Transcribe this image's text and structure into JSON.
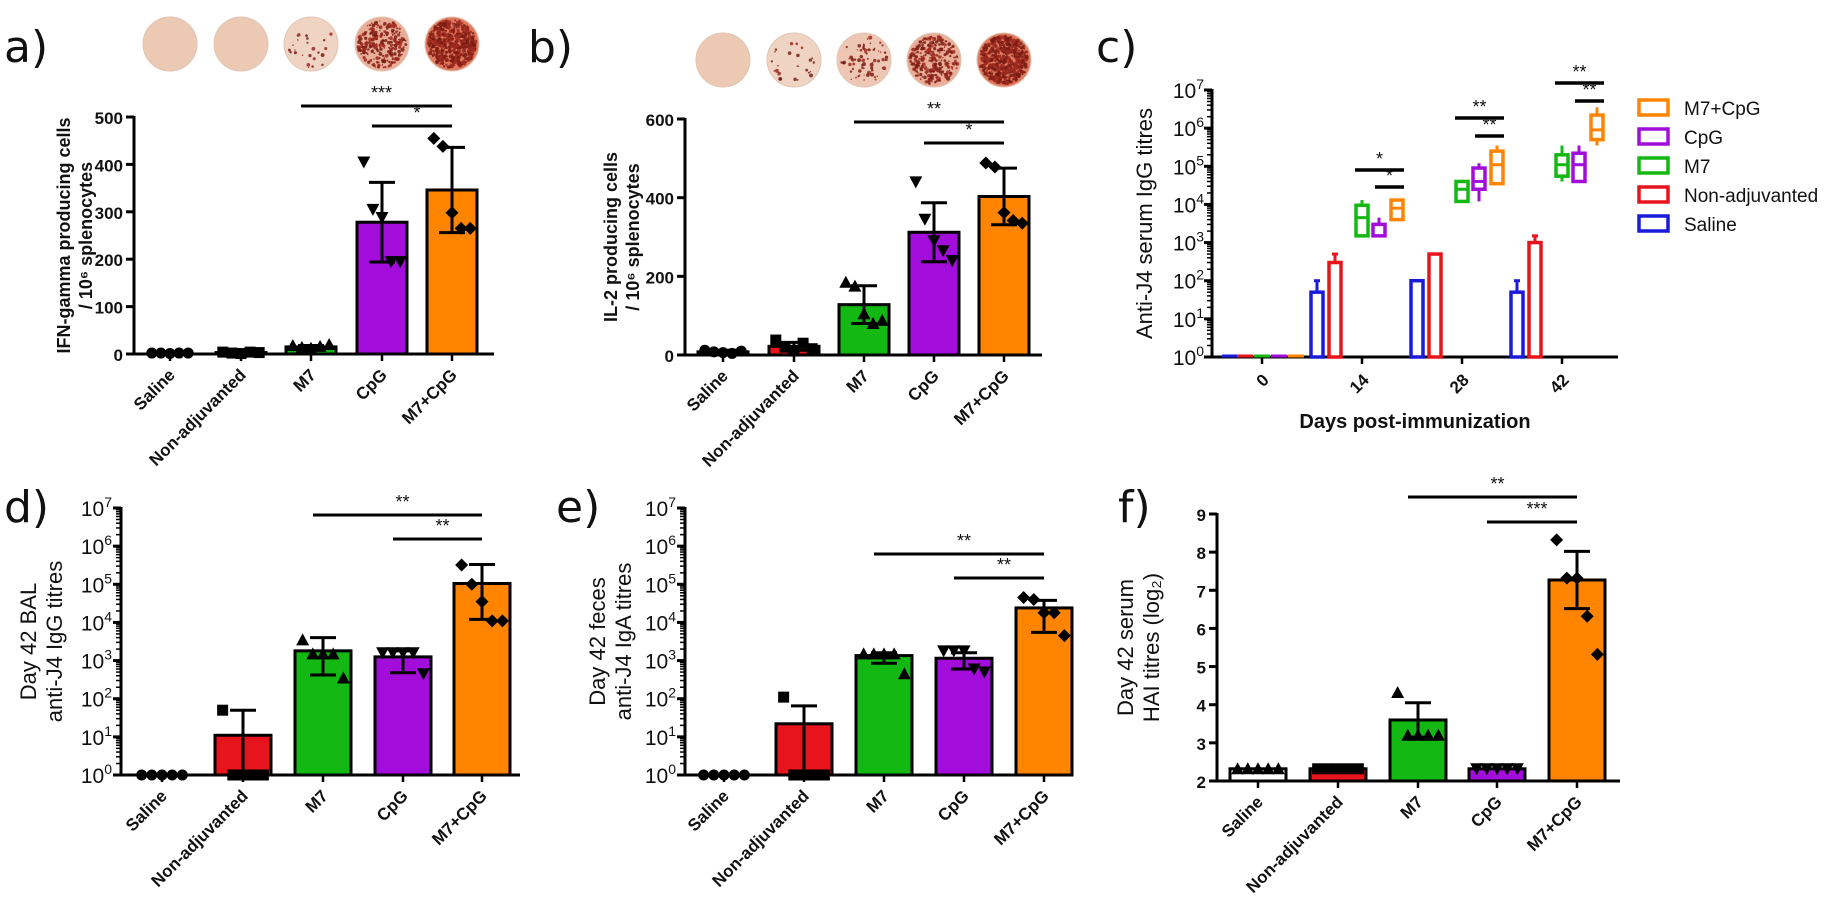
{
  "groups": [
    "Saline",
    "Non-adjuvanted",
    "M7",
    "CpG",
    "M7+CpG"
  ],
  "colors": {
    "Saline": "#1a1adb",
    "Non-adjuvanted": "#e8141b",
    "M7": "#13b813",
    "CpG": "#a20ddb",
    "M7+CpG": "#ff8400"
  },
  "chart_data": [
    {
      "id": "a",
      "panel_label": "a)",
      "type": "bar",
      "ylabel_line1": "IFN-gamma producing cells",
      "ylabel_line2": "/ 10⁶ splenocytes",
      "ylim": [
        0,
        500
      ],
      "yticks": [
        0,
        100,
        200,
        300,
        400,
        500
      ],
      "scale": "linear",
      "categories": [
        "Saline",
        "Non-adjuvanted",
        "M7",
        "CpG",
        "M7+CpG"
      ],
      "values": [
        2,
        3,
        15,
        278,
        346
      ],
      "errors": [
        1,
        2,
        3,
        84,
        90
      ],
      "points": [
        [
          2,
          2,
          1,
          2,
          2
        ],
        [
          4,
          2,
          1,
          4,
          3
        ],
        [
          18,
          14,
          12,
          16,
          20
        ],
        [
          405,
          305,
          288,
          195,
          195
        ],
        [
          455,
          438,
          298,
          265,
          265
        ]
      ],
      "markers": [
        "circle",
        "square",
        "triangle",
        "triangle-down",
        "diamond"
      ],
      "sig": [
        {
          "from": 2,
          "to": 4,
          "label": "***"
        },
        {
          "from": 3,
          "to": 4,
          "label": "*"
        }
      ],
      "elispot_wells": [
        "none",
        "none",
        "sparse",
        "dense",
        "very-dense"
      ]
    },
    {
      "id": "b",
      "panel_label": "b)",
      "type": "bar",
      "ylabel_line1": "IL-2 producing cells",
      "ylabel_line2": "/ 10⁶ splenocytes",
      "ylim": [
        0,
        600
      ],
      "yticks": [
        0,
        200,
        400,
        600
      ],
      "scale": "linear",
      "categories": [
        "Saline",
        "Non-adjuvanted",
        "M7",
        "CpG",
        "M7+CpG"
      ],
      "values": [
        8,
        22,
        128,
        312,
        403
      ],
      "errors": [
        4,
        10,
        48,
        75,
        72
      ],
      "points": [
        [
          12,
          8,
          6,
          4,
          10
        ],
        [
          38,
          20,
          10,
          30,
          16
        ],
        [
          185,
          175,
          105,
          80,
          88
        ],
        [
          440,
          345,
          290,
          265,
          240
        ],
        [
          488,
          478,
          362,
          342,
          335
        ]
      ],
      "markers": [
        "circle",
        "square",
        "triangle",
        "triangle-down",
        "diamond"
      ],
      "sig": [
        {
          "from": 2,
          "to": 4,
          "label": "**"
        },
        {
          "from": 3,
          "to": 4,
          "label": "*"
        }
      ],
      "elispot_wells": [
        "none",
        "sparse",
        "moderate",
        "dense",
        "very-dense"
      ]
    },
    {
      "id": "c",
      "panel_label": "c)",
      "type": "box",
      "ylabel": "Anti-J4 serum IgG titres",
      "xlabel": "Days post-immunization",
      "scale": "log10",
      "ylim_exp": [
        0,
        7
      ],
      "yticks_exp": [
        0,
        1,
        2,
        3,
        4,
        5,
        6,
        7
      ],
      "x": [
        0,
        14,
        28,
        42
      ],
      "legend": [
        "M7+CpG",
        "CpG",
        "M7",
        "Non-adjuvanted",
        "Saline"
      ],
      "legend_position": "right",
      "series": [
        {
          "name": "Saline",
          "style": "bar",
          "values": [
            1,
            50,
            100,
            50
          ],
          "upper": [
            1,
            100,
            100,
            100
          ]
        },
        {
          "name": "Non-adjuvanted",
          "style": "bar",
          "values": [
            1,
            300,
            500,
            1000
          ],
          "upper": [
            1,
            500,
            500,
            1500
          ]
        },
        {
          "name": "M7",
          "style": "box",
          "values": [
            1,
            null,
            null,
            null
          ],
          "box": [
            null,
            {
              "min": 1500,
              "q1": 1500,
              "med": 4500,
              "q3": 9500,
              "max": 13000
            },
            {
              "min": 12000,
              "q1": 12000,
              "med": 25000,
              "q3": 40000,
              "max": 40000
            },
            {
              "min": 40000,
              "q1": 55000,
              "med": 110000,
              "q3": 200000,
              "max": 350000
            }
          ]
        },
        {
          "name": "CpG",
          "style": "box",
          "values": [
            1,
            null,
            null,
            null
          ],
          "box": [
            null,
            {
              "min": 1500,
              "q1": 1500,
              "med": 3000,
              "q3": 3000,
              "max": 4500
            },
            {
              "min": 12000,
              "q1": 25000,
              "med": 40000,
              "q3": 90000,
              "max": 120000
            },
            {
              "min": 40000,
              "q1": 40000,
              "med": 110000,
              "q3": 220000,
              "max": 350000
            }
          ]
        },
        {
          "name": "M7+CpG",
          "style": "box",
          "values": [
            1,
            null,
            null,
            null
          ],
          "box": [
            null,
            {
              "min": 4000,
              "q1": 4000,
              "med": 8000,
              "q3": 13000,
              "max": 13000
            },
            {
              "min": 35000,
              "q1": 35000,
              "med": 110000,
              "q3": 250000,
              "max": 350000
            },
            {
              "min": 350000,
              "q1": 500000,
              "med": 900000,
              "q3": 2200000,
              "max": 3500000
            }
          ]
        }
      ],
      "sig": [
        {
          "x": 14,
          "from": "M7",
          "to": "M7+CpG",
          "label": "*"
        },
        {
          "x": 14,
          "from": "CpG",
          "to": "M7+CpG",
          "label": "*"
        },
        {
          "x": 28,
          "from": "M7",
          "to": "M7+CpG",
          "label": "**"
        },
        {
          "x": 28,
          "from": "CpG",
          "to": "M7+CpG",
          "label": "**"
        },
        {
          "x": 42,
          "from": "M7",
          "to": "M7+CpG",
          "label": "**"
        },
        {
          "x": 42,
          "from": "CpG",
          "to": "M7+CpG",
          "label": "**"
        }
      ]
    },
    {
      "id": "d",
      "panel_label": "d)",
      "type": "bar",
      "ylabel_line1": "Day 42 BAL",
      "ylabel_line2": "anti-J4 IgG titres",
      "scale": "log10",
      "ylim_exp": [
        0,
        7
      ],
      "yticks_exp": [
        0,
        1,
        2,
        3,
        4,
        5,
        6,
        7
      ],
      "categories": [
        "Saline",
        "Non-adjuvanted",
        "M7",
        "CpG",
        "M7+CpG"
      ],
      "values": [
        1,
        11,
        1800,
        1250,
        105000
      ],
      "err_low": [
        1,
        1,
        420,
        480,
        12000
      ],
      "err_high": [
        1,
        50,
        4000,
        1800,
        330000
      ],
      "points": [
        [
          1,
          1,
          1,
          1,
          1
        ],
        [
          50,
          1,
          1,
          1,
          1
        ],
        [
          3500,
          1500,
          1500,
          1500,
          350
        ],
        [
          1600,
          1600,
          1600,
          1600,
          450
        ],
        [
          320000,
          100000,
          35000,
          11000,
          11000
        ]
      ],
      "markers": [
        "circle",
        "square",
        "triangle",
        "triangle-down",
        "diamond"
      ],
      "sig": [
        {
          "from": 2,
          "to": 4,
          "label": "**"
        },
        {
          "from": 3,
          "to": 4,
          "label": "**"
        }
      ]
    },
    {
      "id": "e",
      "panel_label": "e)",
      "type": "bar",
      "ylabel_line1": "Day 42 feces",
      "ylabel_line2": "anti-J4 IgA titres",
      "scale": "log10",
      "ylim_exp": [
        0,
        7
      ],
      "yticks_exp": [
        0,
        1,
        2,
        3,
        4,
        5,
        6,
        7
      ],
      "categories": [
        "Saline",
        "Non-adjuvanted",
        "M7",
        "CpG",
        "M7+CpG"
      ],
      "values": [
        1,
        22,
        1350,
        1150,
        24000
      ],
      "err_low": [
        1,
        1,
        850,
        600,
        5500
      ],
      "err_high": [
        1,
        65,
        1600,
        1600,
        38000
      ],
      "points": [
        [
          1,
          1,
          1,
          1,
          1
        ],
        [
          110,
          1,
          1,
          1,
          1
        ],
        [
          1500,
          1500,
          1500,
          1500,
          450
        ],
        [
          1800,
          1800,
          1800,
          600,
          500
        ],
        [
          45000,
          40000,
          18000,
          18000,
          4500
        ]
      ],
      "markers": [
        "circle",
        "square",
        "triangle",
        "triangle-down",
        "diamond"
      ],
      "sig": [
        {
          "from": 2,
          "to": 4,
          "label": "**"
        },
        {
          "from": 3,
          "to": 4,
          "label": "**"
        }
      ]
    },
    {
      "id": "f",
      "panel_label": "f)",
      "type": "bar",
      "ylabel_line1": "Day 42 serum",
      "ylabel_line2": "HAI titres (log₂)",
      "scale": "linear",
      "ylim": [
        2,
        9
      ],
      "yticks": [
        2,
        3,
        4,
        5,
        6,
        7,
        8,
        9
      ],
      "categories": [
        "Saline",
        "Non-adjuvanted",
        "M7",
        "CpG",
        "M7+CpG"
      ],
      "values": [
        2.32,
        2.32,
        3.6,
        2.32,
        7.27
      ],
      "errors": [
        0,
        0,
        0.45,
        0,
        0.75
      ],
      "points": [
        [
          2.32,
          2.32,
          2.32,
          2.32,
          2.32
        ],
        [
          2.32,
          2.32,
          2.32,
          2.32,
          2.32
        ],
        [
          4.32,
          3.2,
          3.2,
          3.2,
          3.2
        ],
        [
          2.32,
          2.32,
          2.32,
          2.32,
          2.32
        ],
        [
          8.32,
          7.32,
          7.32,
          6.32,
          5.32
        ]
      ],
      "markers": [
        "triangle",
        "square",
        "triangle",
        "triangle-down",
        "diamond"
      ],
      "sig": [
        {
          "from": 2,
          "to": 4,
          "label": "**"
        },
        {
          "from": 3,
          "to": 4,
          "label": "***"
        }
      ]
    }
  ]
}
